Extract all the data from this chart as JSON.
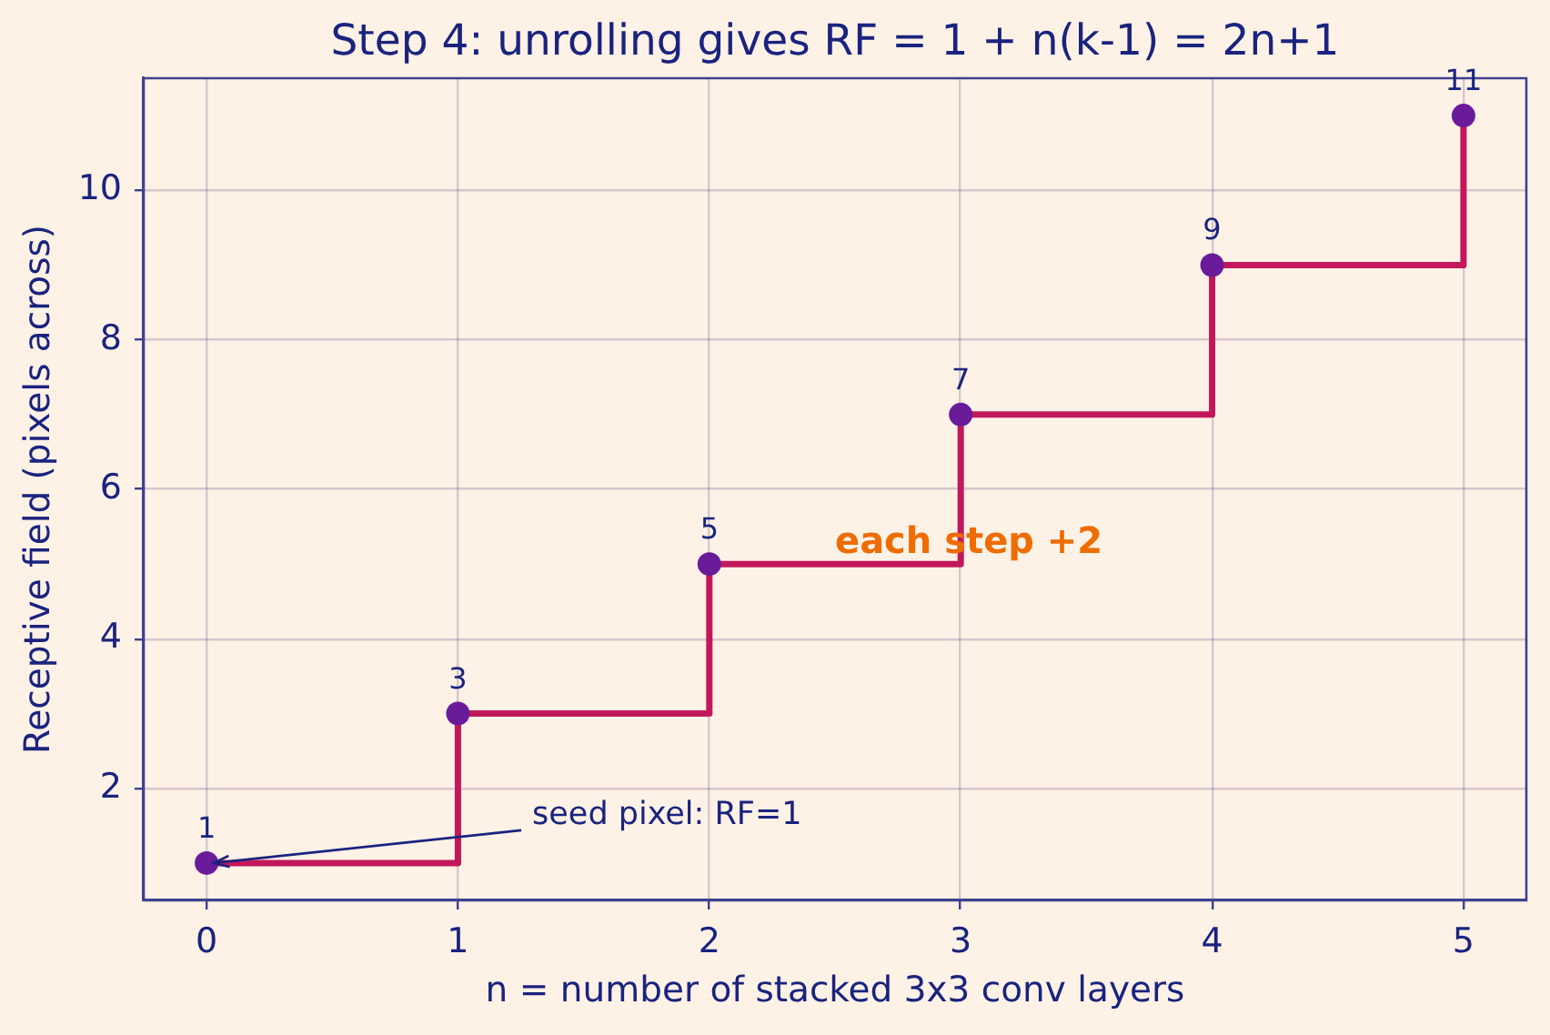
{
  "chart_data": {
    "type": "step",
    "title": "Step 4: unrolling gives RF = 1 + n(k-1) = 2n+1",
    "xlabel": "n = number of stacked 3x3 conv layers",
    "ylabel": "Receptive field (pixels across)",
    "x": [
      0,
      1,
      2,
      3,
      4,
      5
    ],
    "series": [
      {
        "color": "#c2185b",
        "values": [
          1,
          3,
          5,
          7,
          9,
          11
        ],
        "marker": "none"
      },
      {
        "type": "scatter",
        "color": "#6a1b9a",
        "values": [
          1,
          3,
          5,
          7,
          9,
          11
        ],
        "marker": "circle",
        "value_labels": [
          "1",
          "3",
          "5",
          "7",
          "9",
          "11"
        ]
      }
    ],
    "xlim": [
      -0.25,
      5.25
    ],
    "ylim": [
      0.5,
      11.5
    ],
    "xticks": [
      0,
      1,
      2,
      3,
      4,
      5
    ],
    "yticks": [
      2,
      4,
      6,
      8,
      10
    ],
    "grid": true,
    "annotations": [
      {
        "text": "seed pixel: RF=1",
        "x": 0,
        "y": 1
      },
      {
        "text": "each step +2",
        "x": 2.5,
        "y": 5
      }
    ]
  }
}
